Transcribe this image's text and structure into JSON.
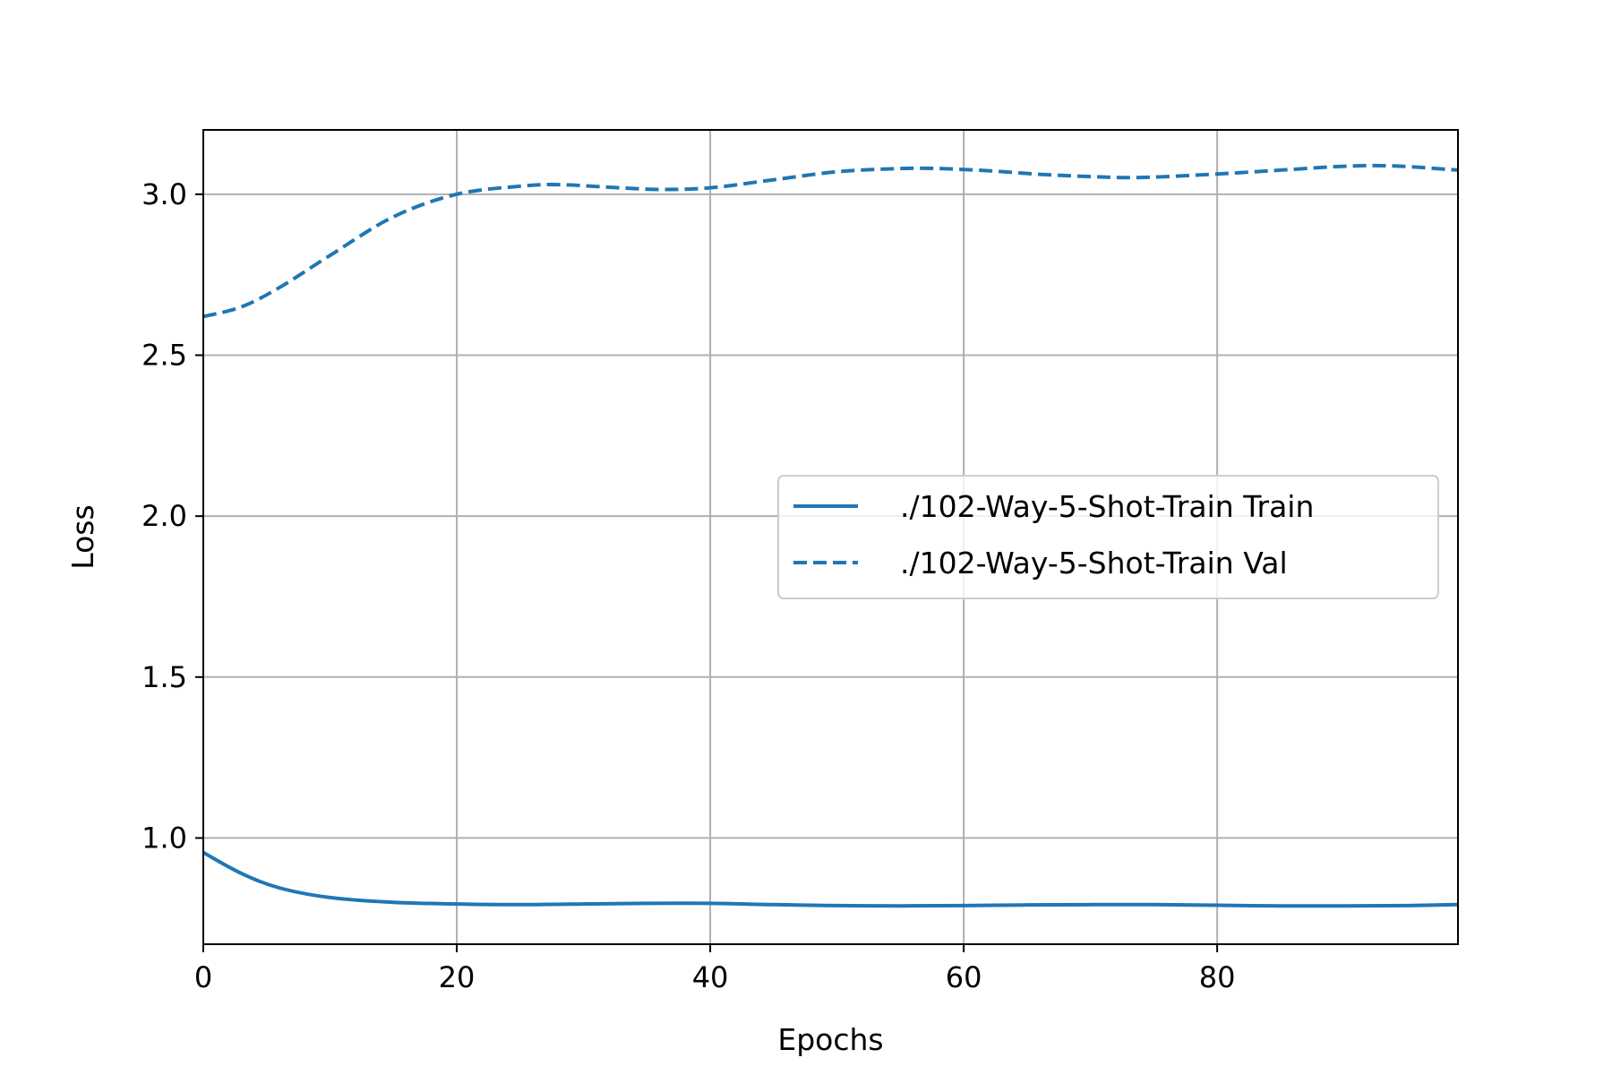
{
  "chart_data": {
    "type": "line",
    "title": "",
    "xlabel": "Epochs",
    "ylabel": "Loss",
    "xlim": [
      0,
      99
    ],
    "ylim": [
      0.67,
      3.2
    ],
    "xticks": [
      0,
      20,
      40,
      60,
      80
    ],
    "xtick_labels": [
      "0",
      "20",
      "40",
      "60",
      "80"
    ],
    "yticks": [
      1.0,
      1.5,
      2.0,
      2.5,
      3.0
    ],
    "ytick_labels": [
      "1.0",
      "1.5",
      "2.0",
      "2.5",
      "3.0"
    ],
    "grid": true,
    "legend_position": "center-right",
    "color": "#1f77b4",
    "series": [
      {
        "name": "./102-Way-5-Shot-Train Train",
        "style": "solid",
        "x": [
          0,
          3,
          6,
          10,
          15,
          20,
          25,
          30,
          35,
          40,
          45,
          50,
          55,
          60,
          65,
          70,
          75,
          80,
          85,
          90,
          95,
          99
        ],
        "y": [
          0.955,
          0.89,
          0.845,
          0.815,
          0.8,
          0.795,
          0.793,
          0.795,
          0.797,
          0.797,
          0.793,
          0.79,
          0.789,
          0.79,
          0.792,
          0.793,
          0.793,
          0.791,
          0.789,
          0.789,
          0.79,
          0.793
        ]
      },
      {
        "name": "./102-Way-5-Shot-Train Val",
        "style": "dashed",
        "x": [
          0,
          3,
          6,
          10,
          15,
          20,
          25,
          28,
          32,
          36,
          40,
          45,
          50,
          55,
          58,
          62,
          66,
          70,
          74,
          80,
          85,
          90,
          94,
          99
        ],
        "y": [
          2.62,
          2.65,
          2.71,
          2.81,
          2.93,
          3.0,
          3.025,
          3.03,
          3.022,
          3.015,
          3.02,
          3.045,
          3.07,
          3.08,
          3.08,
          3.073,
          3.062,
          3.055,
          3.052,
          3.063,
          3.075,
          3.087,
          3.088,
          3.075
        ]
      }
    ]
  }
}
